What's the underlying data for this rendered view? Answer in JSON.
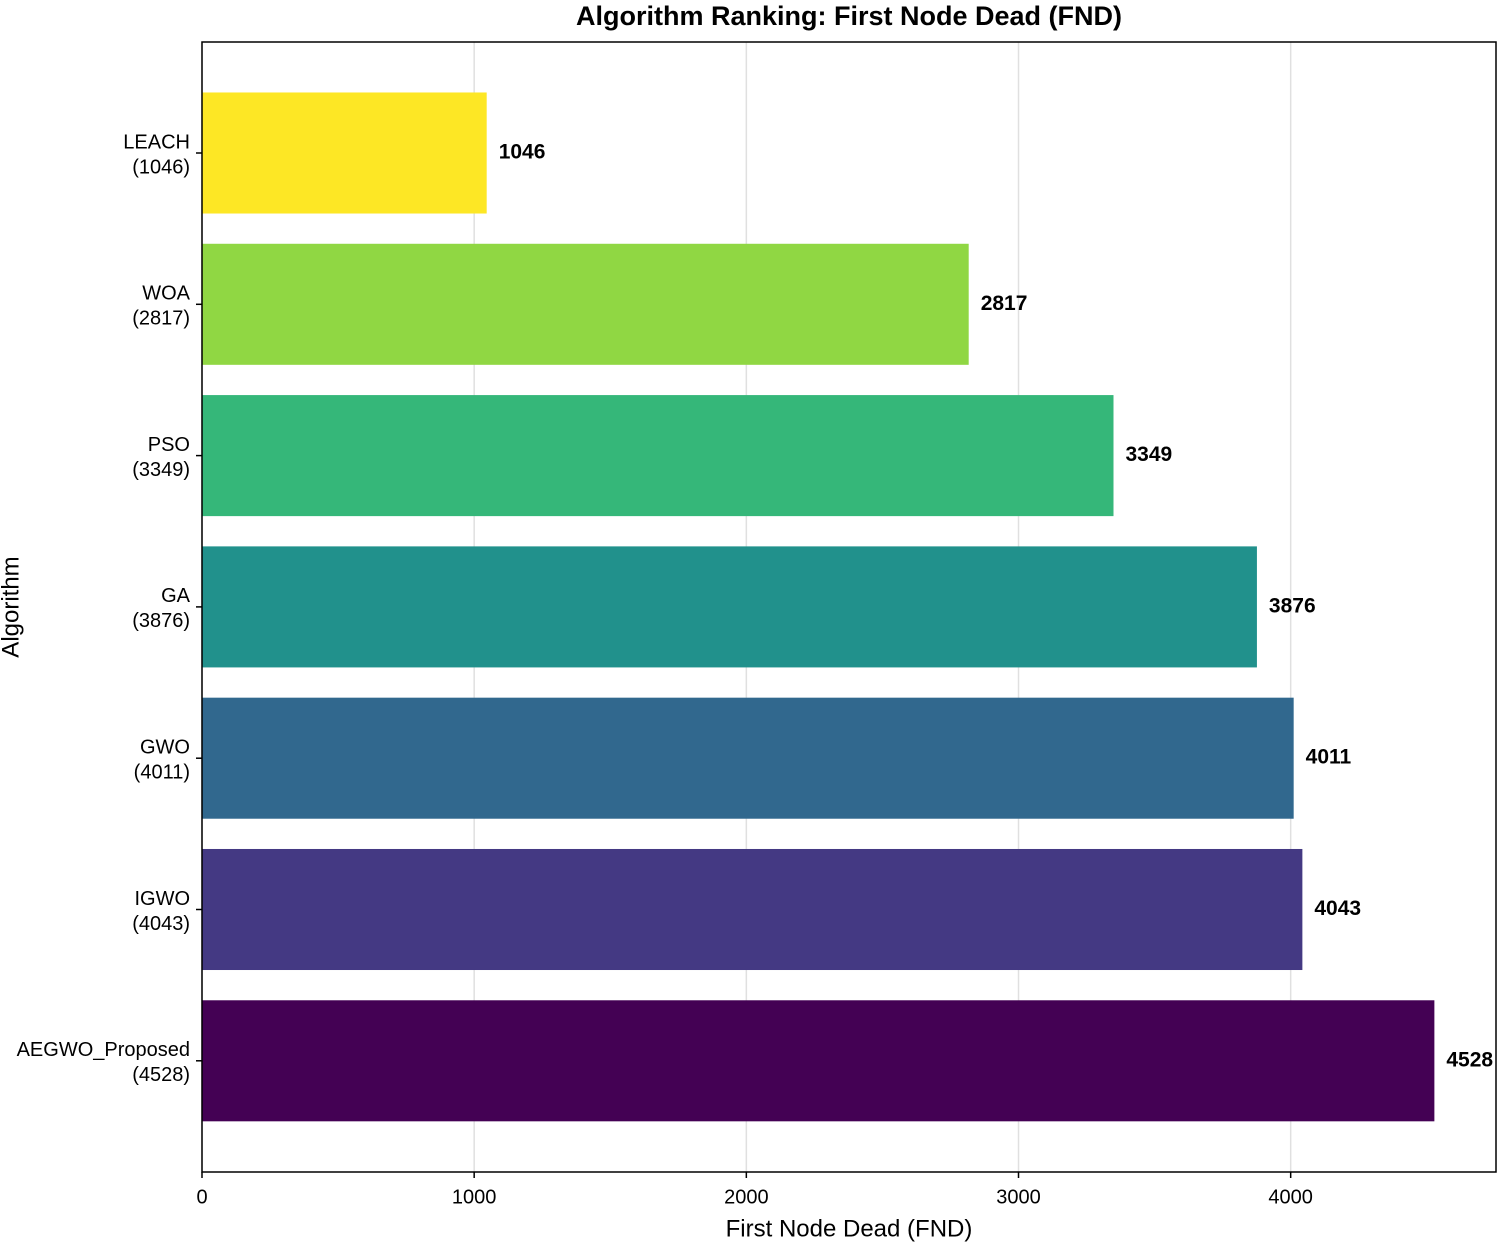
{
  "chart_data": {
    "type": "bar",
    "orientation": "horizontal",
    "title": "Algorithm Ranking: First Node Dead (FND)",
    "x_label": "First Node Dead (FND)",
    "y_label": "Algorithm",
    "categories": [
      [
        "LEACH",
        "(1046)"
      ],
      [
        "WOA",
        "(2817)"
      ],
      [
        "PSO",
        "(3349)"
      ],
      [
        "GA",
        "(3876)"
      ],
      [
        "GWO",
        "(4011)"
      ],
      [
        "IGWO",
        "(4043)"
      ],
      [
        "AEGWO_Proposed",
        "(4528)"
      ]
    ],
    "values": [
      1046,
      2817,
      3349,
      3876,
      4011,
      4043,
      4528
    ],
    "colors": [
      "#fde725",
      "#90d743",
      "#35b779",
      "#21918c",
      "#31688e",
      "#443983",
      "#440154"
    ],
    "xlim": [
      0,
      4754.4
    ],
    "xticks": [
      0,
      1000,
      2000,
      3000,
      4000
    ],
    "grid": true
  }
}
